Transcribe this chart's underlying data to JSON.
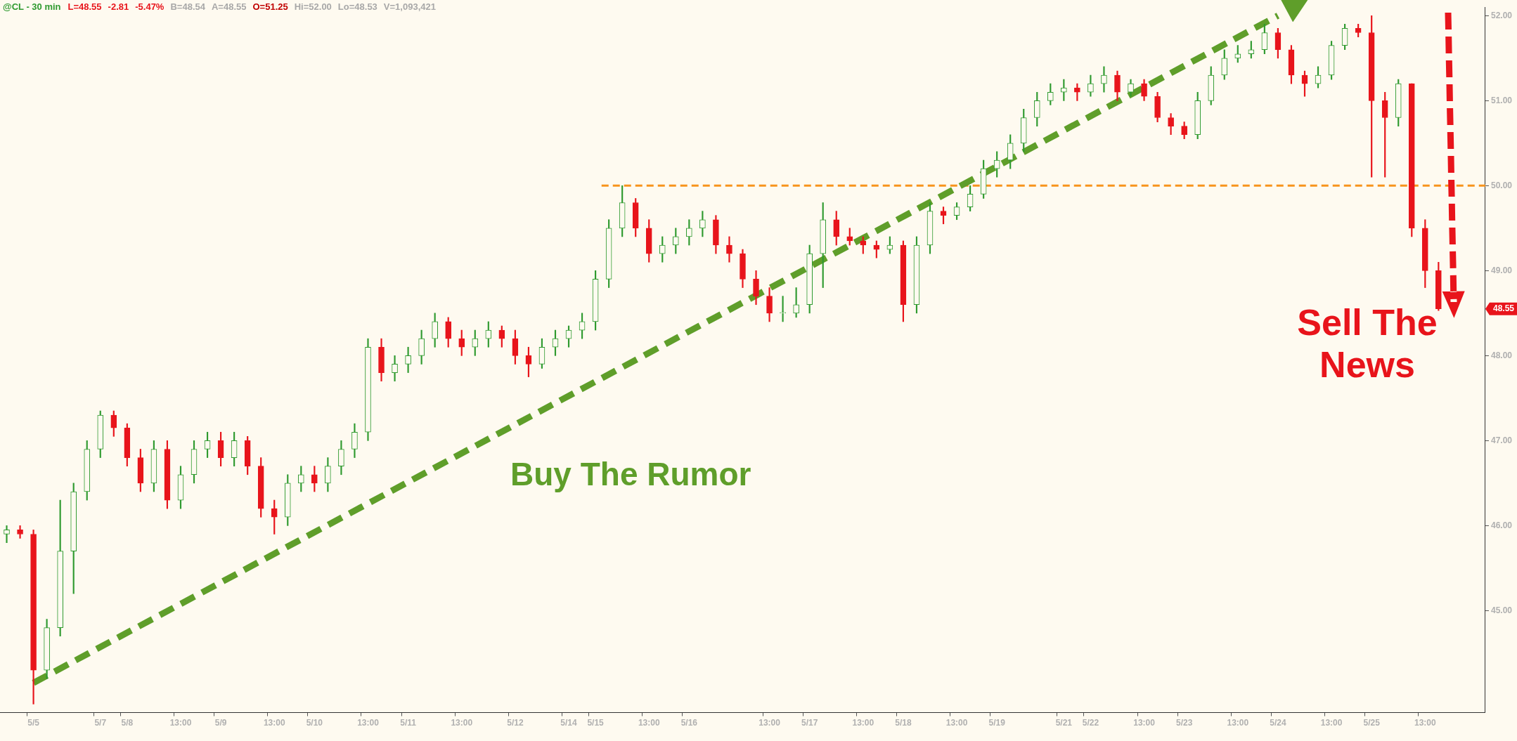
{
  "chart_data": {
    "type": "candlestick",
    "title": "@CL - 30 min",
    "annotations": [
      "L=48.55",
      "-2.81",
      "-5.47%",
      "B=48.54",
      "A=48.55",
      "O=51.25",
      "Hi=52.00",
      "Lo=48.53",
      "V=1,093,421",
      "Buy The Rumor",
      "Sell The News",
      "48.55"
    ],
    "categories": [
      null,
      null,
      "5/5",
      null,
      null,
      null,
      null,
      "5/7",
      null,
      "5/8",
      null,
      null,
      null,
      "13:00",
      null,
      null,
      "5/9",
      null,
      null,
      null,
      "13:00",
      null,
      null,
      "5/10",
      null,
      null,
      null,
      "13:00",
      null,
      null,
      "5/11",
      null,
      null,
      null,
      "13:00",
      null,
      null,
      null,
      "5/12",
      null,
      null,
      null,
      "5/14",
      null,
      "5/15",
      null,
      null,
      null,
      "13:00",
      null,
      null,
      "5/16",
      null,
      null,
      null,
      null,
      null,
      "13:00",
      null,
      null,
      "5/17",
      null,
      null,
      null,
      "13:00",
      null,
      null,
      "5/18",
      null,
      null,
      null,
      "13:00",
      null,
      null,
      "5/19",
      null,
      null,
      null,
      null,
      "5/21",
      null,
      "5/22",
      null,
      null,
      null,
      "13:00",
      null,
      null,
      "5/23",
      null,
      null,
      null,
      "13:00",
      null,
      null,
      "5/24",
      null,
      null,
      null,
      "13:00",
      null,
      null,
      "5/25",
      null,
      null,
      null,
      "13:00",
      null,
      null,
      null,
      null
    ],
    "ohlc": [
      [
        45.9,
        46.0,
        45.8,
        45.95
      ],
      [
        45.95,
        46.0,
        45.85,
        45.9
      ],
      [
        45.9,
        45.95,
        43.9,
        44.3
      ],
      [
        44.3,
        44.9,
        44.2,
        44.8
      ],
      [
        44.8,
        46.3,
        44.7,
        45.7
      ],
      [
        45.7,
        46.5,
        45.2,
        46.4
      ],
      [
        46.4,
        47.0,
        46.3,
        46.9
      ],
      [
        46.9,
        47.35,
        46.8,
        47.3
      ],
      [
        47.3,
        47.35,
        47.05,
        47.15
      ],
      [
        47.15,
        47.2,
        46.7,
        46.8
      ],
      [
        46.8,
        46.9,
        46.4,
        46.5
      ],
      [
        46.5,
        47.0,
        46.4,
        46.9
      ],
      [
        46.9,
        47.0,
        46.2,
        46.3
      ],
      [
        46.3,
        46.7,
        46.2,
        46.6
      ],
      [
        46.6,
        47.0,
        46.5,
        46.9
      ],
      [
        46.9,
        47.1,
        46.8,
        47.0
      ],
      [
        47.0,
        47.1,
        46.7,
        46.8
      ],
      [
        46.8,
        47.1,
        46.7,
        47.0
      ],
      [
        47.0,
        47.05,
        46.6,
        46.7
      ],
      [
        46.7,
        46.8,
        46.1,
        46.2
      ],
      [
        46.2,
        46.3,
        45.9,
        46.1
      ],
      [
        46.1,
        46.6,
        46.0,
        46.5
      ],
      [
        46.5,
        46.7,
        46.4,
        46.6
      ],
      [
        46.6,
        46.7,
        46.4,
        46.5
      ],
      [
        46.5,
        46.8,
        46.4,
        46.7
      ],
      [
        46.7,
        47.0,
        46.6,
        46.9
      ],
      [
        46.9,
        47.2,
        46.8,
        47.1
      ],
      [
        47.1,
        48.2,
        47.0,
        48.1
      ],
      [
        48.1,
        48.2,
        47.7,
        47.8
      ],
      [
        47.8,
        48.0,
        47.7,
        47.9
      ],
      [
        47.9,
        48.1,
        47.8,
        48.0
      ],
      [
        48.0,
        48.3,
        47.9,
        48.2
      ],
      [
        48.2,
        48.5,
        48.1,
        48.4
      ],
      [
        48.4,
        48.45,
        48.1,
        48.2
      ],
      [
        48.2,
        48.3,
        48.0,
        48.1
      ],
      [
        48.1,
        48.3,
        48.0,
        48.2
      ],
      [
        48.2,
        48.4,
        48.1,
        48.3
      ],
      [
        48.3,
        48.35,
        48.1,
        48.2
      ],
      [
        48.2,
        48.3,
        47.9,
        48.0
      ],
      [
        48.0,
        48.1,
        47.75,
        47.9
      ],
      [
        47.9,
        48.2,
        47.85,
        48.1
      ],
      [
        48.1,
        48.3,
        48.0,
        48.2
      ],
      [
        48.2,
        48.35,
        48.1,
        48.3
      ],
      [
        48.3,
        48.5,
        48.2,
        48.4
      ],
      [
        48.4,
        49.0,
        48.3,
        48.9
      ],
      [
        48.9,
        49.6,
        48.8,
        49.5
      ],
      [
        49.5,
        50.0,
        49.4,
        49.8
      ],
      [
        49.8,
        49.85,
        49.4,
        49.5
      ],
      [
        49.5,
        49.6,
        49.1,
        49.2
      ],
      [
        49.2,
        49.4,
        49.1,
        49.3
      ],
      [
        49.3,
        49.5,
        49.2,
        49.4
      ],
      [
        49.4,
        49.6,
        49.3,
        49.5
      ],
      [
        49.5,
        49.7,
        49.4,
        49.6
      ],
      [
        49.6,
        49.65,
        49.2,
        49.3
      ],
      [
        49.3,
        49.4,
        49.1,
        49.2
      ],
      [
        49.2,
        49.25,
        48.8,
        48.9
      ],
      [
        48.9,
        49.0,
        48.6,
        48.7
      ],
      [
        48.7,
        48.8,
        48.4,
        48.5
      ],
      [
        48.5,
        48.7,
        48.4,
        48.5
      ],
      [
        48.5,
        48.8,
        48.45,
        48.6
      ],
      [
        48.6,
        49.3,
        48.5,
        49.2
      ],
      [
        49.2,
        49.8,
        48.8,
        49.6
      ],
      [
        49.6,
        49.7,
        49.3,
        49.4
      ],
      [
        49.4,
        49.5,
        49.3,
        49.35
      ],
      [
        49.35,
        49.4,
        49.2,
        49.3
      ],
      [
        49.3,
        49.35,
        49.15,
        49.25
      ],
      [
        49.25,
        49.4,
        49.2,
        49.3
      ],
      [
        49.3,
        49.35,
        48.4,
        48.6
      ],
      [
        48.6,
        49.4,
        48.5,
        49.3
      ],
      [
        49.3,
        49.8,
        49.2,
        49.7
      ],
      [
        49.7,
        49.75,
        49.55,
        49.65
      ],
      [
        49.65,
        49.8,
        49.6,
        49.75
      ],
      [
        49.75,
        50.0,
        49.7,
        49.9
      ],
      [
        49.9,
        50.3,
        49.85,
        50.2
      ],
      [
        50.2,
        50.4,
        50.1,
        50.3
      ],
      [
        50.3,
        50.6,
        50.2,
        50.5
      ],
      [
        50.5,
        50.9,
        50.4,
        50.8
      ],
      [
        50.8,
        51.1,
        50.7,
        51.0
      ],
      [
        51.0,
        51.2,
        50.95,
        51.1
      ],
      [
        51.1,
        51.25,
        51.0,
        51.15
      ],
      [
        51.15,
        51.2,
        51.0,
        51.1
      ],
      [
        51.1,
        51.3,
        51.05,
        51.2
      ],
      [
        51.2,
        51.4,
        51.1,
        51.3
      ],
      [
        51.3,
        51.35,
        51.0,
        51.1
      ],
      [
        51.1,
        51.25,
        51.05,
        51.2
      ],
      [
        51.2,
        51.25,
        51.0,
        51.05
      ],
      [
        51.05,
        51.1,
        50.75,
        50.8
      ],
      [
        50.8,
        50.85,
        50.6,
        50.7
      ],
      [
        50.7,
        50.75,
        50.55,
        50.6
      ],
      [
        50.6,
        51.1,
        50.55,
        51.0
      ],
      [
        51.0,
        51.4,
        50.95,
        51.3
      ],
      [
        51.3,
        51.6,
        51.25,
        51.5
      ],
      [
        51.5,
        51.65,
        51.45,
        51.55
      ],
      [
        51.55,
        51.7,
        51.5,
        51.6
      ],
      [
        51.6,
        51.9,
        51.55,
        51.8
      ],
      [
        51.8,
        51.85,
        51.5,
        51.6
      ],
      [
        51.6,
        51.65,
        51.2,
        51.3
      ],
      [
        51.3,
        51.35,
        51.05,
        51.2
      ],
      [
        51.2,
        51.4,
        51.15,
        51.3
      ],
      [
        51.3,
        51.7,
        51.25,
        51.65
      ],
      [
        51.65,
        51.9,
        51.6,
        51.85
      ],
      [
        51.85,
        51.9,
        51.75,
        51.8
      ],
      [
        51.8,
        52.0,
        50.1,
        51.0
      ],
      [
        51.0,
        51.1,
        50.1,
        50.8
      ],
      [
        50.8,
        51.25,
        50.7,
        51.2
      ],
      [
        51.2,
        51.2,
        49.4,
        49.5
      ],
      [
        49.5,
        49.6,
        48.8,
        49.0
      ],
      [
        49.0,
        49.1,
        48.53,
        48.55
      ],
      null,
      null,
      null
    ],
    "series": [
      {
        "type": "line",
        "x": [
          "5/5",
          "5/24"
        ],
        "values": [
          44.15,
          52.0
        ],
        "color": "#5f9e2a",
        "line_style": "dashed"
      }
    ],
    "ylim": [
      43.8,
      52.1
    ],
    "yticks": [
      {
        "value": 45,
        "label": "45.00"
      },
      {
        "value": 46,
        "label": "46.00"
      },
      {
        "value": 47,
        "label": "47.00"
      },
      {
        "value": 48,
        "label": "48.00"
      },
      {
        "value": 49,
        "label": "49.00"
      },
      {
        "value": 50,
        "label": "50.00"
      },
      {
        "value": 51,
        "label": "51.00"
      },
      {
        "value": 52,
        "label": "52.00"
      }
    ],
    "ref_lines": [
      {
        "axis": "y",
        "value": 50,
        "color": "#f7941d",
        "line_style": "dashed"
      }
    ]
  }
}
